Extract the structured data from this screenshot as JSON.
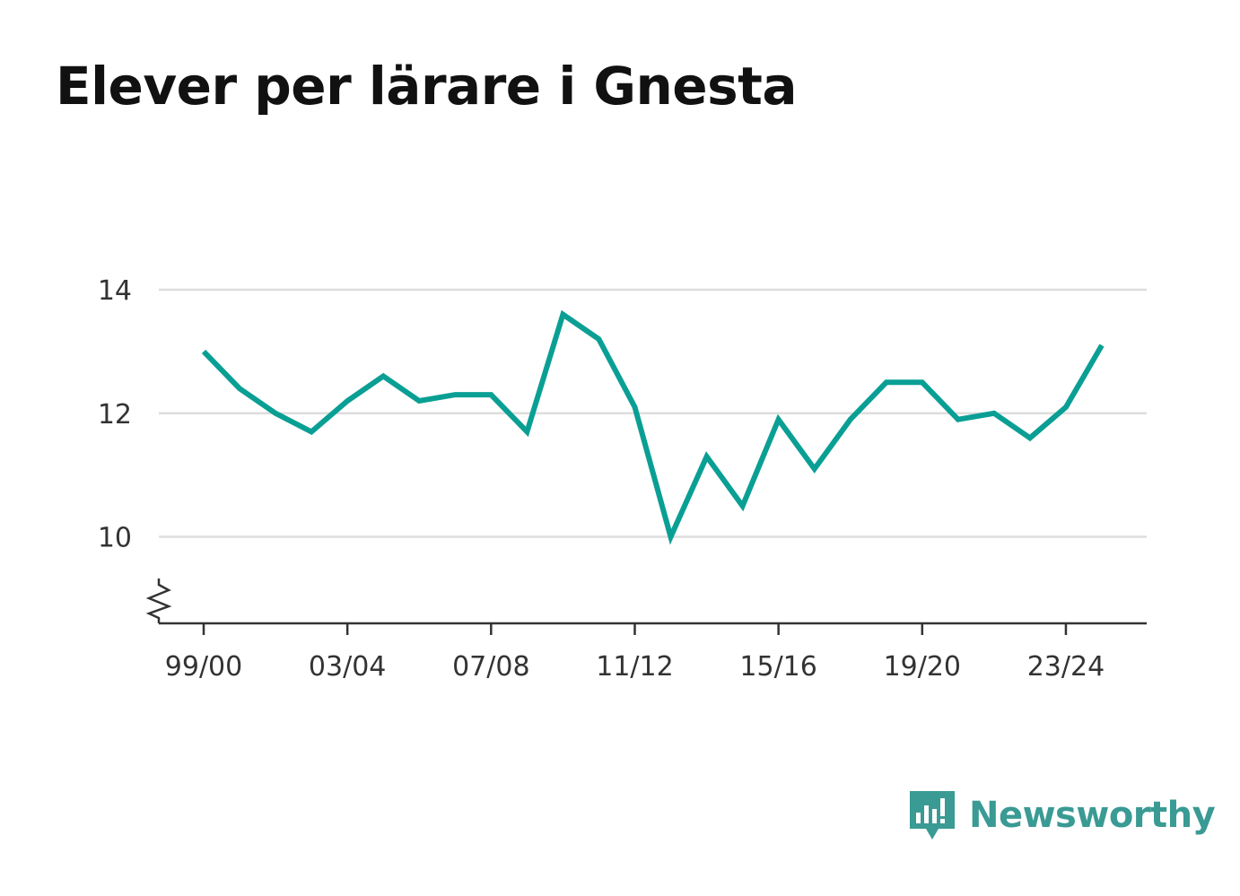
{
  "title": "Elever per lärare i Gnesta",
  "brand": {
    "name": "Newsworthy",
    "color": "#3a9a94",
    "icon": "bar-chart-speech-bubble-icon"
  },
  "chart_data": {
    "type": "line",
    "title": "Elever per lärare i Gnesta",
    "xlabel": "",
    "ylabel": "",
    "x": [
      "99/00",
      "00/01",
      "01/02",
      "02/03",
      "03/04",
      "04/05",
      "05/06",
      "06/07",
      "07/08",
      "08/09",
      "09/10",
      "10/11",
      "11/12",
      "12/13",
      "13/14",
      "14/15",
      "15/16",
      "16/17",
      "17/18",
      "18/19",
      "19/20",
      "20/21",
      "21/22",
      "22/23",
      "23/24",
      "24/25"
    ],
    "x_tick_labels": [
      "99/00",
      "03/04",
      "07/08",
      "11/12",
      "15/16",
      "19/20",
      "23/24"
    ],
    "y_ticks": [
      "10",
      "12",
      "14"
    ],
    "ylim": [
      8.6,
      14
    ],
    "axis_break": true,
    "grid": true,
    "line_color": "#0a9f94",
    "series": [
      {
        "values": [
          13.0,
          12.4,
          12.0,
          11.7,
          12.2,
          12.6,
          12.2,
          12.3,
          12.3,
          11.7,
          13.6,
          13.2,
          12.1,
          10.0,
          11.3,
          10.5,
          11.9,
          11.1,
          11.9,
          12.5,
          12.5,
          11.9,
          12.0,
          11.6,
          12.1,
          13.1
        ]
      }
    ]
  }
}
